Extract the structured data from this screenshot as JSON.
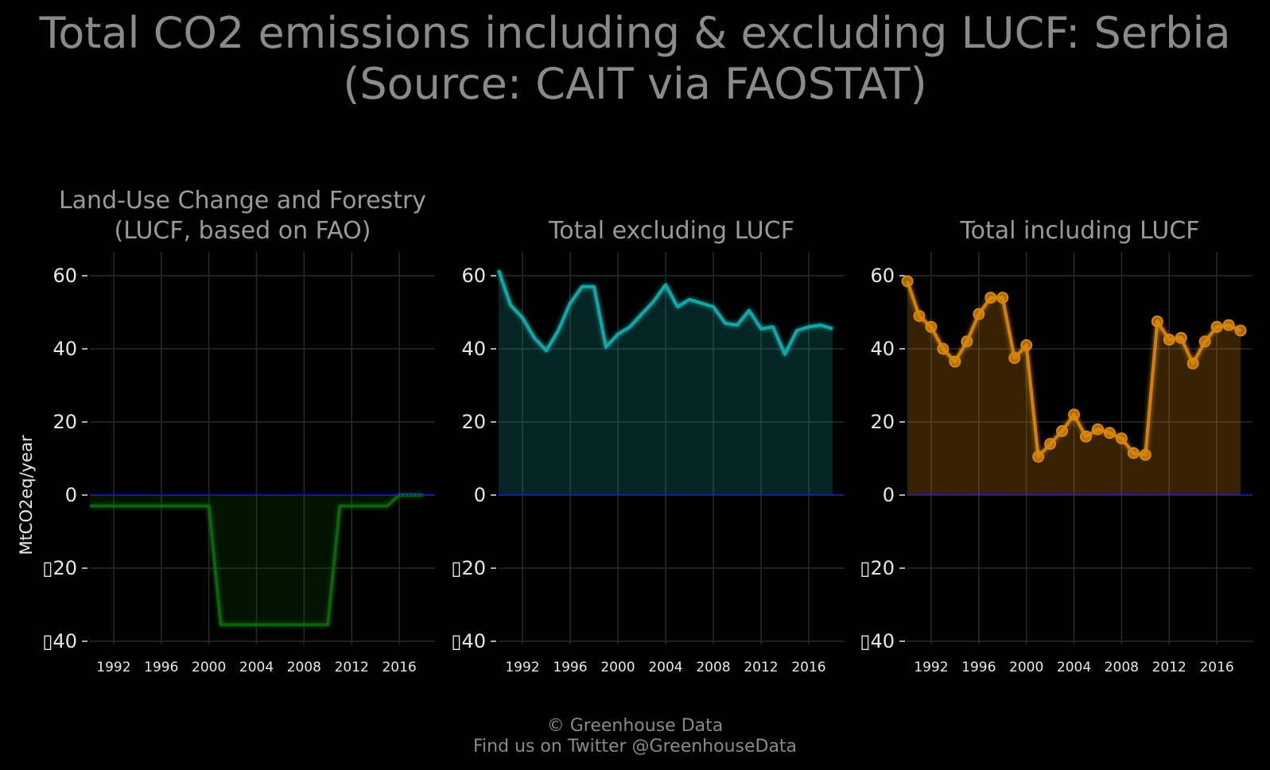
{
  "title": {
    "line1": "Total CO2 emissions including & excluding LUCF: Serbia",
    "line2": "(Source: CAIT via FAOSTAT)"
  },
  "footer": {
    "line1": "© Greenhouse Data",
    "line2": "Find us on Twitter @GreenhouseData"
  },
  "colors": {
    "lucf": "#0d6b0d",
    "excl": "#17a5a5",
    "incl": "#d9870b",
    "zero_line": "#1515d0",
    "grid": "#2a2a2a"
  },
  "chart_data": [
    {
      "type": "area",
      "title_lines": [
        "Land-Use Change and Forestry",
        "(LUCF, based on FAO)"
      ],
      "ylabel": "MtCO2eq/year",
      "xlabel": "",
      "ylim": [
        -40,
        65
      ],
      "yticks": [
        60,
        40,
        20,
        0,
        -20,
        -40
      ],
      "ytick_labels": [
        "60",
        "40",
        "20",
        "0",
        "▯20",
        "▯40"
      ],
      "xticks": [
        1992,
        1996,
        2000,
        2004,
        2008,
        2012,
        2016
      ],
      "grid": true,
      "markers": false,
      "x": [
        1990,
        1991,
        1992,
        1993,
        1994,
        1995,
        1996,
        1997,
        1998,
        1999,
        2000,
        2001,
        2002,
        2003,
        2004,
        2005,
        2006,
        2007,
        2008,
        2009,
        2010,
        2011,
        2012,
        2013,
        2014,
        2015,
        2016,
        2017,
        2018
      ],
      "series": [
        {
          "values": [
            -3,
            -3,
            -3,
            -3,
            -3,
            -3,
            -3,
            -3,
            -3,
            -3,
            -3,
            -35.5,
            -35.5,
            -35.5,
            -35.5,
            -35.5,
            -35.5,
            -35.5,
            -35.5,
            -35.5,
            -35.5,
            -3,
            -3,
            -3,
            -3,
            -3,
            0,
            0,
            0
          ]
        }
      ]
    },
    {
      "type": "area",
      "title_lines": [
        "Total excluding LUCF"
      ],
      "ylim": [
        -40,
        65
      ],
      "yticks": [
        60,
        40,
        20,
        0,
        -20,
        -40
      ],
      "ytick_labels": [
        "60",
        "40",
        "20",
        "0",
        "▯20",
        "▯40"
      ],
      "xticks": [
        1992,
        1996,
        2000,
        2004,
        2008,
        2012,
        2016
      ],
      "grid": true,
      "markers": false,
      "x": [
        1990,
        1991,
        1992,
        1993,
        1994,
        1995,
        1996,
        1997,
        1998,
        1999,
        2000,
        2001,
        2002,
        2003,
        2004,
        2005,
        2006,
        2007,
        2008,
        2009,
        2010,
        2011,
        2012,
        2013,
        2014,
        2015,
        2016,
        2017,
        2018
      ],
      "series": [
        {
          "values": [
            61.5,
            52,
            48.5,
            43,
            39.5,
            45,
            52.5,
            57,
            57,
            40.5,
            44,
            46,
            49.5,
            53,
            57.5,
            51.5,
            53.5,
            52.5,
            51.5,
            47,
            46.5,
            50.5,
            45.5,
            46,
            38.5,
            45,
            46,
            46.5,
            45.5
          ]
        }
      ]
    },
    {
      "type": "area",
      "title_lines": [
        "Total including LUCF"
      ],
      "ylim": [
        -40,
        65
      ],
      "yticks": [
        60,
        40,
        20,
        0,
        -20,
        -40
      ],
      "ytick_labels": [
        "60",
        "40",
        "20",
        "0",
        "▯20",
        "▯40"
      ],
      "xticks": [
        1992,
        1996,
        2000,
        2004,
        2008,
        2012,
        2016
      ],
      "grid": true,
      "markers": true,
      "x": [
        1990,
        1991,
        1992,
        1993,
        1994,
        1995,
        1996,
        1997,
        1998,
        1999,
        2000,
        2001,
        2002,
        2003,
        2004,
        2005,
        2006,
        2007,
        2008,
        2009,
        2010,
        2011,
        2012,
        2013,
        2014,
        2015,
        2016,
        2017,
        2018
      ],
      "series": [
        {
          "values": [
            58.5,
            49,
            46,
            40,
            36.5,
            42,
            49.5,
            54,
            54,
            37.5,
            41,
            10.5,
            14,
            17.5,
            22,
            16,
            18,
            17,
            15.5,
            11.5,
            11,
            47.5,
            42.5,
            43,
            36,
            42,
            46,
            46.5,
            45
          ]
        }
      ]
    }
  ]
}
